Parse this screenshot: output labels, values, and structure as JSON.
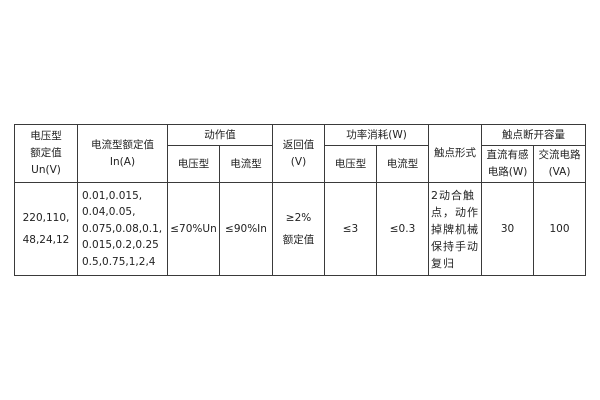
{
  "headers": {
    "rated_voltage": [
      "电压型",
      "额定值",
      "Un(V)"
    ],
    "rated_current": [
      "电流型额定值",
      "In(A)"
    ],
    "operate_value": "动作值",
    "operate_voltage": "电压型",
    "operate_current": "电流型",
    "return_value": [
      "返回值",
      "(V)"
    ],
    "power_consumption": "功率消耗(W)",
    "power_voltage": "电压型",
    "power_current": "电流型",
    "contact_form": "触点形式",
    "breaking_capacity": "触点断开容量",
    "dc_inductive": [
      "直流有感",
      "电路(W)"
    ],
    "ac_circuit": [
      "交流电路",
      "(VA)"
    ]
  },
  "row": {
    "rated_voltage": [
      "220,110,",
      "48,24,12"
    ],
    "rated_current": [
      "0.01,0.015,",
      "0.04,0.05,",
      "0.075,0.08,0.1,",
      "0.015,0.2,0.25",
      "0.5,0.75,1,2,4"
    ],
    "operate_voltage": "≤70%Un",
    "operate_current": "≤90%In",
    "return_value": [
      "≥2%",
      "额定值"
    ],
    "power_voltage": "≤3",
    "power_current": "≤0.3",
    "contact_form": [
      "2动合触",
      "点，动作",
      "掉牌机械",
      "保持手动",
      "复归"
    ],
    "dc_inductive": "30",
    "ac_circuit": "100"
  }
}
